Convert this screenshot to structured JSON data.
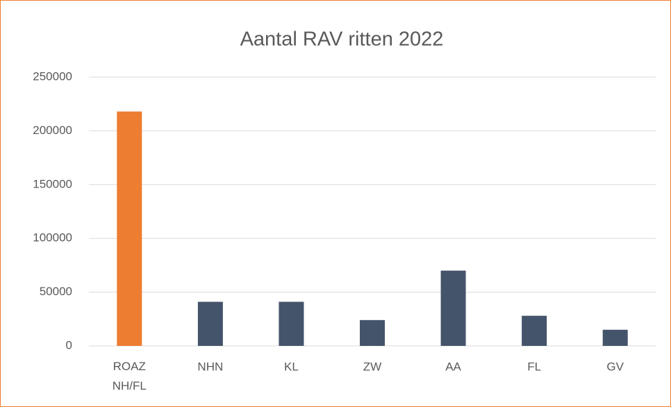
{
  "chart_data": {
    "type": "bar",
    "title": "Aantal RAV ritten 2022",
    "categories": [
      "ROAZ NH/FL",
      "NHN",
      "KL",
      "ZW",
      "AA",
      "FL",
      "GV"
    ],
    "values": [
      218000,
      41000,
      41000,
      24000,
      70000,
      28000,
      15000
    ],
    "colors": [
      "#ed7d31",
      "#44546a",
      "#44546a",
      "#44546a",
      "#44546a",
      "#44546a",
      "#44546a"
    ],
    "ylim": [
      0,
      250000
    ],
    "yticks": [
      0,
      50000,
      100000,
      150000,
      200000,
      250000
    ],
    "grid": true
  }
}
